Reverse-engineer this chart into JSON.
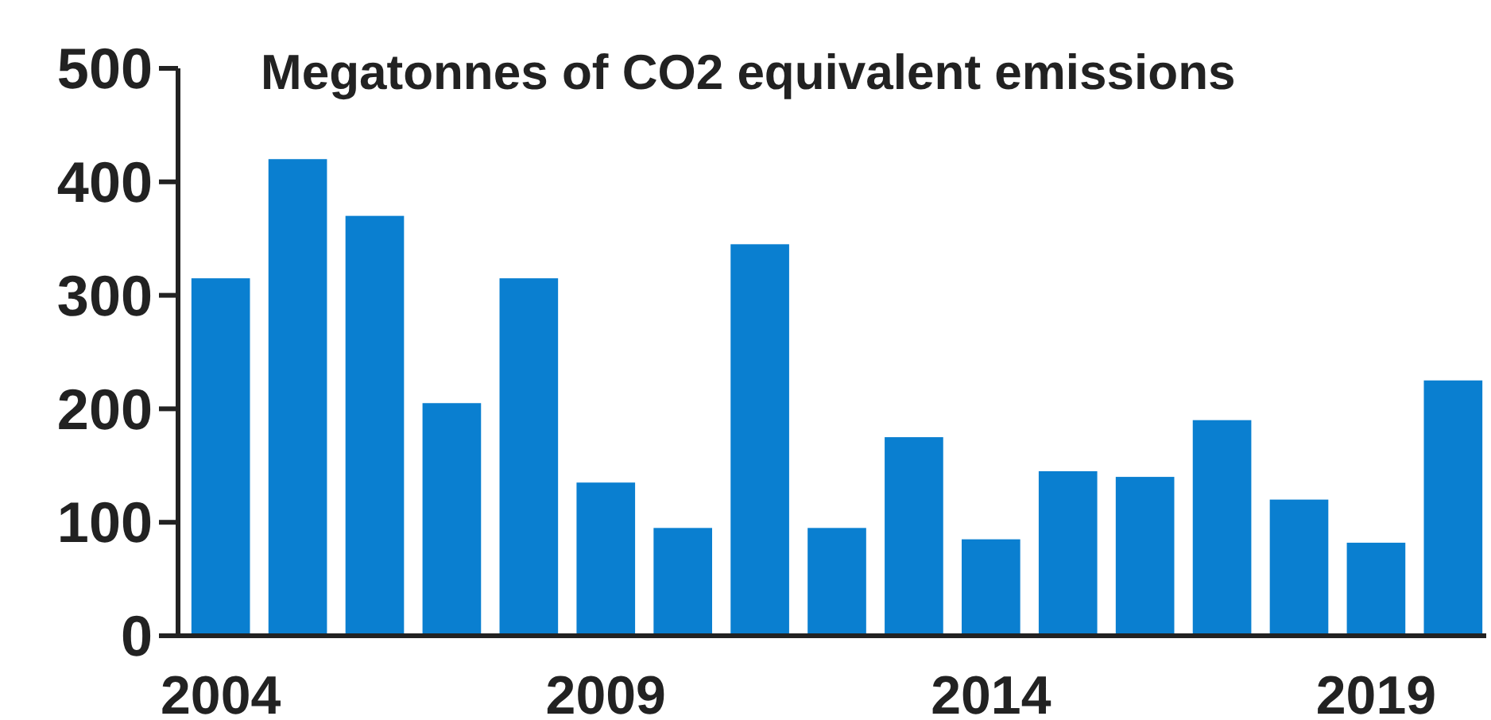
{
  "chart_data": {
    "type": "bar",
    "title": "Megatonnes of CO2 equivalent emissions",
    "categories": [
      "2004",
      null,
      null,
      null,
      null,
      "2009",
      null,
      null,
      null,
      null,
      "2014",
      null,
      null,
      null,
      null,
      "2019",
      null
    ],
    "values": [
      315,
      420,
      370,
      205,
      315,
      135,
      95,
      345,
      95,
      175,
      85,
      145,
      140,
      190,
      120,
      82,
      225
    ],
    "color": "#0a7fd0",
    "ylim": [
      0,
      500
    ],
    "yticks": [
      0,
      100,
      200,
      300,
      400,
      500
    ],
    "grid": false
  }
}
